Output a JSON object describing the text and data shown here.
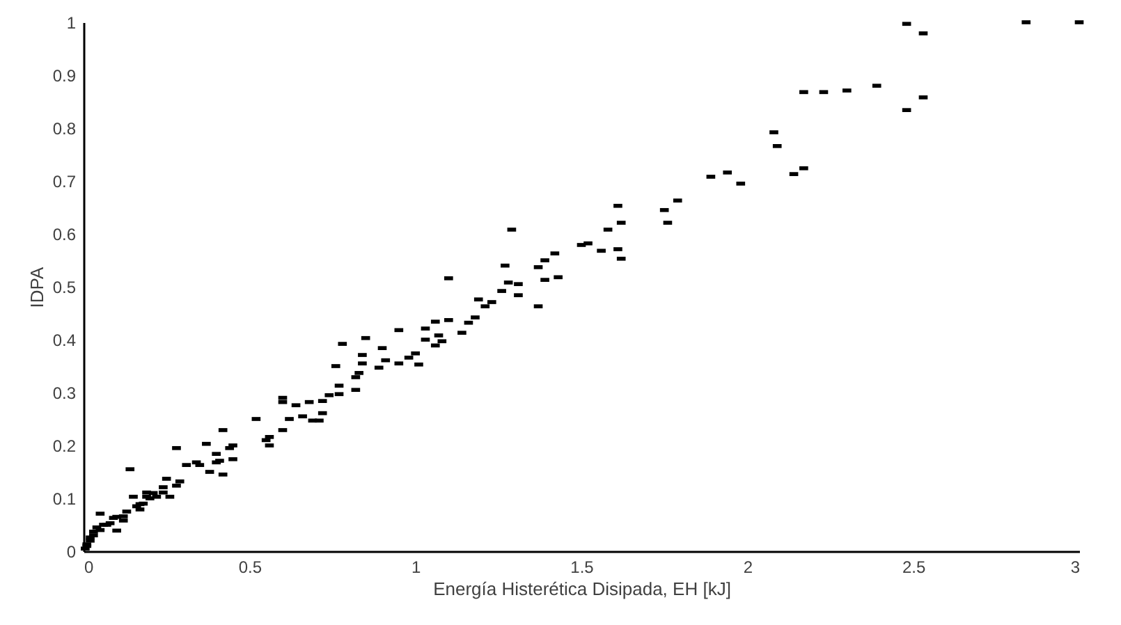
{
  "chart_data": {
    "type": "scatter",
    "xlabel": "Energía Histerética Disipada, EH [kJ]",
    "ylabel": "IDPA",
    "xlim": [
      0,
      3
    ],
    "xticks": [
      0,
      0.5,
      1,
      1.5,
      2,
      2.5,
      3
    ],
    "ylim": [
      0,
      1
    ],
    "yticks": [
      0,
      0.1,
      0.2,
      0.3,
      0.4,
      0.5,
      0.6,
      0.7,
      0.8,
      0.9,
      1
    ],
    "grid": false,
    "marker": "square",
    "series": [
      {
        "color": "#000000",
        "x": [
          0.005,
          0.01,
          0.01,
          0.02,
          0.02,
          0.03,
          0.03,
          0.04,
          0.05,
          0.05,
          0.06,
          0.07,
          0.08,
          0.09,
          0.1,
          0.1,
          0.12,
          0.12,
          0.13,
          0.14,
          0.15,
          0.16,
          0.17,
          0.17,
          0.18,
          0.19,
          0.19,
          0.2,
          0.21,
          0.22,
          0.24,
          0.24,
          0.25,
          0.26,
          0.28,
          0.28,
          0.29,
          0.31,
          0.34,
          0.35,
          0.37,
          0.38,
          0.4,
          0.4,
          0.41,
          0.42,
          0.42,
          0.44,
          0.45,
          0.45,
          0.52,
          0.55,
          0.56,
          0.56,
          0.6,
          0.6,
          0.6,
          0.62,
          0.64,
          0.66,
          0.68,
          0.69,
          0.71,
          0.72,
          0.72,
          0.74,
          0.76,
          0.77,
          0.77,
          0.78,
          0.82,
          0.82,
          0.83,
          0.84,
          0.84,
          0.85,
          0.89,
          0.9,
          0.91,
          0.95,
          0.95,
          0.98,
          1.0,
          1.01,
          1.03,
          1.03,
          1.06,
          1.06,
          1.07,
          1.08,
          1.1,
          1.1,
          1.14,
          1.16,
          1.18,
          1.19,
          1.21,
          1.23,
          1.26,
          1.27,
          1.28,
          1.29,
          1.31,
          1.31,
          1.37,
          1.37,
          1.39,
          1.39,
          1.42,
          1.43,
          1.5,
          1.52,
          1.56,
          1.58,
          1.61,
          1.61,
          1.62,
          1.62,
          1.75,
          1.76,
          1.79,
          1.89,
          1.94,
          1.98,
          2.08,
          2.09,
          2.14,
          2.17,
          2.17,
          2.23,
          2.3,
          2.39,
          2.48,
          2.48,
          2.53,
          2.53,
          2.84,
          3.0
        ],
        "values": [
          0.005,
          0.01,
          0.013,
          0.02,
          0.026,
          0.03,
          0.037,
          0.045,
          0.04,
          0.071,
          0.05,
          0.05,
          0.053,
          0.063,
          0.065,
          0.039,
          0.066,
          0.058,
          0.075,
          0.155,
          0.103,
          0.085,
          0.089,
          0.079,
          0.09,
          0.111,
          0.103,
          0.1,
          0.11,
          0.103,
          0.121,
          0.111,
          0.137,
          0.103,
          0.195,
          0.124,
          0.132,
          0.163,
          0.168,
          0.163,
          0.203,
          0.15,
          0.184,
          0.168,
          0.171,
          0.229,
          0.145,
          0.195,
          0.2,
          0.174,
          0.25,
          0.21,
          0.216,
          0.2,
          0.29,
          0.282,
          0.229,
          0.25,
          0.276,
          0.255,
          0.282,
          0.247,
          0.247,
          0.284,
          0.261,
          0.295,
          0.35,
          0.313,
          0.297,
          0.392,
          0.329,
          0.305,
          0.337,
          0.371,
          0.355,
          0.403,
          0.347,
          0.384,
          0.361,
          0.418,
          0.355,
          0.366,
          0.374,
          0.353,
          0.421,
          0.4,
          0.434,
          0.389,
          0.408,
          0.397,
          0.437,
          0.516,
          0.413,
          0.432,
          0.442,
          0.476,
          0.463,
          0.471,
          0.492,
          0.54,
          0.508,
          0.608,
          0.505,
          0.484,
          0.537,
          0.463,
          0.55,
          0.513,
          0.563,
          0.518,
          0.579,
          0.582,
          0.568,
          0.608,
          0.653,
          0.571,
          0.621,
          0.553,
          0.645,
          0.621,
          0.663,
          0.708,
          0.716,
          0.695,
          0.792,
          0.766,
          0.713,
          0.868,
          0.724,
          0.868,
          0.871,
          0.88,
          0.997,
          0.834,
          0.979,
          0.858,
          1.0,
          1.0
        ]
      }
    ]
  }
}
